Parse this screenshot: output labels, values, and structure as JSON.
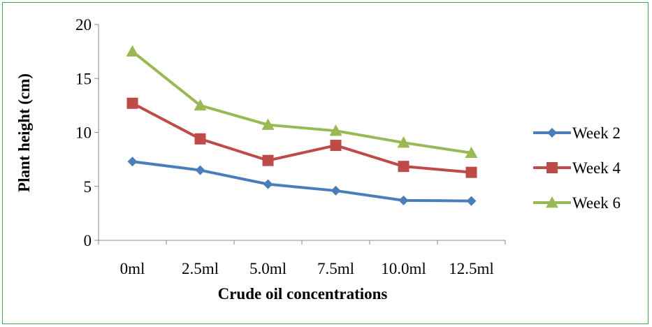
{
  "chart_data": {
    "type": "line",
    "categories": [
      "0ml",
      "2.5ml",
      "5.0ml",
      "7.5ml",
      "10.0ml",
      "12.5ml"
    ],
    "series": [
      {
        "name": "Week 2",
        "values": [
          7.3,
          6.5,
          5.2,
          4.6,
          3.7,
          3.65
        ],
        "color": "#4a7ebb",
        "marker": "diamond"
      },
      {
        "name": "Week 4",
        "values": [
          12.7,
          9.4,
          7.4,
          8.8,
          6.85,
          6.3
        ],
        "color": "#be4b48",
        "marker": "square"
      },
      {
        "name": "Week 6",
        "values": [
          17.5,
          12.5,
          10.7,
          10.15,
          9.05,
          8.1
        ],
        "color": "#98b954",
        "marker": "triangle"
      }
    ],
    "xlabel": "Crude oil concentrations",
    "ylabel": "Plant height (cm)",
    "ylim": [
      0,
      20
    ],
    "yticks": [
      0,
      5,
      10,
      15,
      20
    ],
    "grid": false,
    "legend_position": "right"
  },
  "frame_color": "#3da35d"
}
